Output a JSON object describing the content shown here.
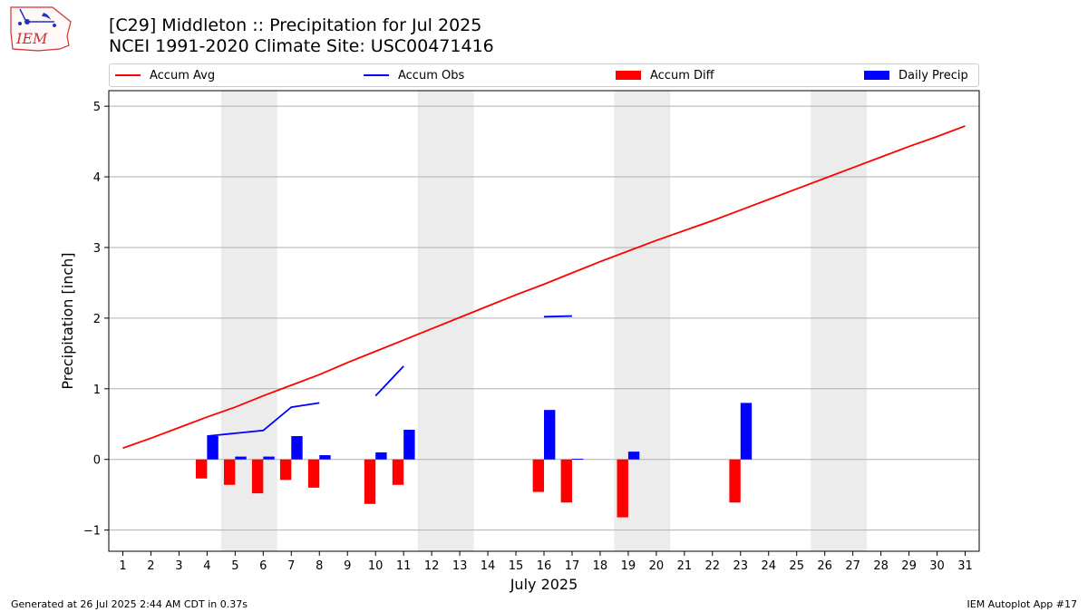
{
  "header": {
    "title_line1": "[C29] Middleton :: Precipitation for Jul 2025",
    "title_line2": "NCEI 1991-2020 Climate Site: USC00471416"
  },
  "logo": {
    "text": "IEM",
    "icon": "iem-logo-icon"
  },
  "footer": {
    "left": "Generated at 26 Jul 2025 2:44 AM CDT in 0.37s",
    "right": "IEM Autoplot App #17"
  },
  "legend": {
    "accum_avg": "Accum Avg",
    "accum_obs": "Accum Obs",
    "accum_diff": "Accum Diff",
    "daily_precip": "Daily Precip"
  },
  "colors": {
    "accum_avg": "#ff0000",
    "accum_obs": "#0000ff",
    "accum_diff": "#ff0000",
    "daily_precip": "#0000ff",
    "weekend_shade": "#ececec",
    "grid": "#b0b0b0"
  },
  "chart_data": {
    "type": "bar",
    "xlabel": "July 2025",
    "ylabel": "Precipitation [inch]",
    "xlim": [
      0.5,
      31.5
    ],
    "ylim": [
      -1.3,
      5.22
    ],
    "yticks": [
      -1,
      0,
      1,
      2,
      3,
      4,
      5
    ],
    "grid": true,
    "legend_position": "top",
    "weekend_days": [
      5,
      6,
      12,
      13,
      19,
      20,
      26,
      27
    ],
    "days": [
      1,
      2,
      3,
      4,
      5,
      6,
      7,
      8,
      9,
      10,
      11,
      12,
      13,
      14,
      15,
      16,
      17,
      18,
      19,
      20,
      21,
      22,
      23,
      24,
      25,
      26,
      27,
      28,
      29,
      30,
      31
    ],
    "series": [
      {
        "name": "Accum Avg",
        "values": [
          0.16,
          0.3,
          0.45,
          0.6,
          0.74,
          0.9,
          1.05,
          1.2,
          1.37,
          1.53,
          1.69,
          1.85,
          2.01,
          2.17,
          2.33,
          2.48,
          2.64,
          2.8,
          2.95,
          3.1,
          3.24,
          3.38,
          3.53,
          3.68,
          3.83,
          3.98,
          4.13,
          4.28,
          4.43,
          4.57,
          4.72
        ]
      },
      {
        "name": "Accum Obs",
        "values": [
          null,
          null,
          null,
          0.33,
          0.37,
          0.41,
          0.74,
          0.8,
          null,
          0.9,
          1.32,
          null,
          null,
          null,
          null,
          2.02,
          2.03,
          null,
          null,
          null,
          null,
          null,
          null,
          null,
          null,
          null,
          null,
          null,
          null,
          null,
          null
        ]
      },
      {
        "name": "Accum Diff",
        "values": [
          null,
          null,
          null,
          -0.27,
          -0.36,
          -0.48,
          -0.29,
          -0.4,
          null,
          -0.63,
          -0.36,
          null,
          null,
          null,
          null,
          -0.46,
          -0.61,
          null,
          -0.82,
          null,
          null,
          null,
          -0.61,
          null,
          null,
          null,
          null,
          null,
          null,
          null,
          null
        ]
      },
      {
        "name": "Daily Precip",
        "values": [
          null,
          null,
          null,
          0.33,
          0.04,
          0.04,
          0.33,
          0.06,
          null,
          0.1,
          0.42,
          null,
          null,
          null,
          null,
          0.7,
          0.01,
          null,
          0.11,
          null,
          null,
          null,
          0.8,
          null,
          null,
          null,
          null,
          null,
          null,
          null,
          null
        ]
      }
    ]
  }
}
